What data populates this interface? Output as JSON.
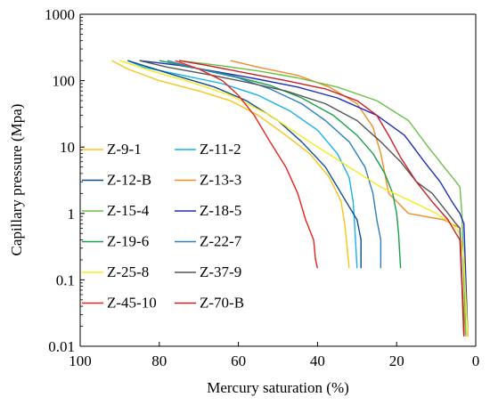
{
  "chart_data": {
    "type": "line",
    "title": "",
    "xlabel": "Mercury saturation (%)",
    "ylabel": "Capillary pressure (Mpa)",
    "xlim": [
      100,
      0
    ],
    "x_reversed": true,
    "ylim": [
      0.01,
      1000
    ],
    "y_scale": "log",
    "x_ticks": [
      "100",
      "80",
      "60",
      "40",
      "20",
      "0"
    ],
    "y_ticks": [
      "0.01",
      "0.1",
      "1",
      "10",
      "100",
      "1000"
    ],
    "grid": false,
    "legend_position": "left",
    "series": [
      {
        "name": "Z-9-1",
        "color": "#f5c518",
        "points": [
          [
            92,
            200
          ],
          [
            88,
            150
          ],
          [
            80,
            100
          ],
          [
            70,
            70
          ],
          [
            62,
            50
          ],
          [
            55,
            30
          ],
          [
            48,
            15
          ],
          [
            42,
            8
          ],
          [
            37,
            3.5
          ],
          [
            34,
            1.5
          ],
          [
            33,
            0.6
          ],
          [
            32.5,
            0.3
          ],
          [
            32,
            0.15
          ]
        ]
      },
      {
        "name": "Z-11-2",
        "color": "#1ab0e8",
        "points": [
          [
            88,
            200
          ],
          [
            84,
            160
          ],
          [
            74,
            120
          ],
          [
            64,
            90
          ],
          [
            55,
            60
          ],
          [
            47,
            35
          ],
          [
            40,
            18
          ],
          [
            35,
            8
          ],
          [
            32,
            3.5
          ],
          [
            31,
            1.5
          ],
          [
            30.5,
            0.5
          ],
          [
            30,
            0.15
          ]
        ]
      },
      {
        "name": "Z-12-B",
        "color": "#0b4f8c",
        "points": [
          [
            88,
            200
          ],
          [
            76,
            120
          ],
          [
            66,
            80
          ],
          [
            58,
            50
          ],
          [
            50,
            25
          ],
          [
            44,
            12
          ],
          [
            38,
            5
          ],
          [
            34,
            2
          ],
          [
            30,
            0.8
          ],
          [
            29,
            0.4
          ],
          [
            29,
            0.15
          ]
        ]
      },
      {
        "name": "Z-13-3",
        "color": "#f28c28",
        "points": [
          [
            62,
            200
          ],
          [
            55,
            160
          ],
          [
            45,
            120
          ],
          [
            37,
            80
          ],
          [
            30,
            45
          ],
          [
            26,
            20
          ],
          [
            24,
            8
          ],
          [
            22,
            2
          ],
          [
            17,
            1
          ],
          [
            8,
            0.8
          ],
          [
            4,
            0.6
          ],
          [
            3.5,
            0.1
          ],
          [
            3,
            0.03
          ],
          [
            2.5,
            0.014
          ]
        ]
      },
      {
        "name": "Z-15-4",
        "color": "#6cc04a",
        "points": [
          [
            75,
            200
          ],
          [
            65,
            170
          ],
          [
            55,
            140
          ],
          [
            45,
            110
          ],
          [
            35,
            80
          ],
          [
            25,
            50
          ],
          [
            17,
            25
          ],
          [
            12,
            10
          ],
          [
            8,
            5
          ],
          [
            5,
            3
          ],
          [
            4,
            2.5
          ],
          [
            3.5,
            1
          ],
          [
            3,
            0.1
          ],
          [
            2.5,
            0.015
          ]
        ]
      },
      {
        "name": "Z-18-5",
        "color": "#1f2fb8",
        "points": [
          [
            85,
            200
          ],
          [
            75,
            170
          ],
          [
            65,
            135
          ],
          [
            55,
            105
          ],
          [
            45,
            80
          ],
          [
            35,
            55
          ],
          [
            25,
            30
          ],
          [
            18,
            15
          ],
          [
            13,
            6
          ],
          [
            9,
            3
          ],
          [
            6,
            1.5
          ],
          [
            4,
            1
          ],
          [
            3,
            0.7
          ],
          [
            2.5,
            0.1
          ],
          [
            2,
            0.014
          ]
        ]
      },
      {
        "name": "Z-19-6",
        "color": "#18a048",
        "points": [
          [
            80,
            200
          ],
          [
            72,
            160
          ],
          [
            62,
            120
          ],
          [
            52,
            85
          ],
          [
            44,
            55
          ],
          [
            36,
            30
          ],
          [
            30,
            15
          ],
          [
            26,
            8
          ],
          [
            23,
            4
          ],
          [
            21,
            2
          ],
          [
            20,
            1
          ],
          [
            19.5,
            0.5
          ],
          [
            19,
            0.15
          ]
        ]
      },
      {
        "name": "Z-22-7",
        "color": "#2a7fc0",
        "points": [
          [
            78,
            200
          ],
          [
            70,
            150
          ],
          [
            60,
            110
          ],
          [
            52,
            75
          ],
          [
            44,
            45
          ],
          [
            38,
            25
          ],
          [
            32,
            12
          ],
          [
            28,
            5
          ],
          [
            26,
            2
          ],
          [
            25,
            0.8
          ],
          [
            24,
            0.4
          ],
          [
            24,
            0.15
          ]
        ]
      },
      {
        "name": "Z-25-8",
        "color": "#f7ea1e",
        "points": [
          [
            90,
            200
          ],
          [
            82,
            140
          ],
          [
            72,
            95
          ],
          [
            62,
            60
          ],
          [
            52,
            30
          ],
          [
            42,
            12
          ],
          [
            32,
            5
          ],
          [
            24,
            2.5
          ],
          [
            16,
            1.5
          ],
          [
            10,
            1
          ],
          [
            6,
            0.7
          ],
          [
            4,
            0.5
          ],
          [
            3,
            0.2
          ],
          [
            2.5,
            0.05
          ],
          [
            2,
            0.014
          ]
        ]
      },
      {
        "name": "Z-37-9",
        "color": "#555555",
        "points": [
          [
            85,
            200
          ],
          [
            78,
            160
          ],
          [
            68,
            125
          ],
          [
            58,
            95
          ],
          [
            48,
            70
          ],
          [
            38,
            45
          ],
          [
            30,
            25
          ],
          [
            24,
            12
          ],
          [
            19,
            6
          ],
          [
            15,
            3
          ],
          [
            11,
            2
          ],
          [
            7,
            1
          ],
          [
            5,
            0.7
          ],
          [
            4,
            0.6
          ],
          [
            3.5,
            0.1
          ],
          [
            3,
            0.015
          ]
        ]
      },
      {
        "name": "Z-45-10",
        "color": "#e8231c",
        "points": [
          [
            76,
            200
          ],
          [
            70,
            150
          ],
          [
            64,
            100
          ],
          [
            60,
            60
          ],
          [
            56,
            30
          ],
          [
            52,
            12
          ],
          [
            48,
            5
          ],
          [
            45,
            2
          ],
          [
            43,
            0.8
          ],
          [
            41,
            0.4
          ],
          [
            40.5,
            0.2
          ],
          [
            40,
            0.15
          ]
        ]
      },
      {
        "name": "Z-70-B",
        "color": "#c81e28",
        "points": [
          [
            75,
            200
          ],
          [
            68,
            170
          ],
          [
            58,
            130
          ],
          [
            48,
            100
          ],
          [
            38,
            75
          ],
          [
            30,
            50
          ],
          [
            25,
            30
          ],
          [
            22,
            15
          ],
          [
            19,
            7
          ],
          [
            15,
            3
          ],
          [
            11,
            1.5
          ],
          [
            7,
            0.8
          ],
          [
            5,
            0.5
          ],
          [
            4,
            0.4
          ],
          [
            3.5,
            0.08
          ],
          [
            3,
            0.014
          ]
        ]
      }
    ]
  }
}
